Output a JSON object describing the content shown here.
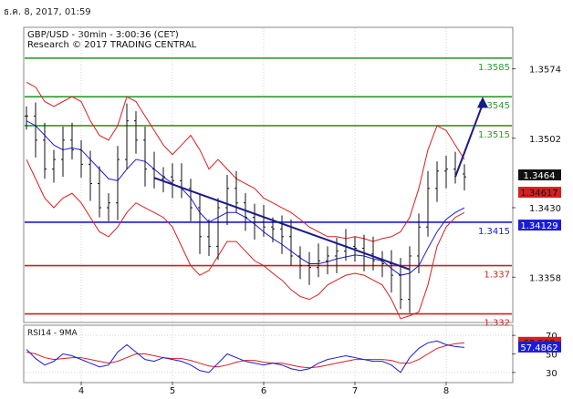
{
  "timestamp": "ธ.ค. 8, 2017, 01:59",
  "chart_data": [
    {
      "type": "candlestick",
      "title": "GBP/USD - 30min - 3:00:36 (CET)",
      "subtitle": "Research © 2017 TRADING CENTRAL",
      "x_tick_labels": [
        "4",
        "5",
        "6",
        "7",
        "8"
      ],
      "y_tick_labels": [
        "1.3574",
        "1.3502",
        "1.3430",
        "1.3358"
      ],
      "ylim": [
        1.3312,
        1.3616
      ],
      "grid": true,
      "levels": [
        {
          "value": 1.3585,
          "label": "1.3585",
          "color": "#2e9a2e"
        },
        {
          "value": 1.3545,
          "label": "1.3545",
          "color": "#2e9a2e"
        },
        {
          "value": 1.3515,
          "label": "1.3515",
          "color": "#2e9a2e"
        },
        {
          "value": 1.3415,
          "label": "1.3415",
          "color": "#1a1adc"
        },
        {
          "value": 1.337,
          "label": "1.337",
          "color": "#d81e1e"
        },
        {
          "value": 1.332,
          "label": "1.332",
          "color": "#d81e1e"
        }
      ],
      "price_tags": [
        {
          "value": 1.3464,
          "label": "1.3464",
          "bg": "#111111",
          "fg": "#ffffff"
        },
        {
          "value": 1.3446,
          "label": "1.34617",
          "bg": "#d81e1e",
          "fg": "#111111"
        },
        {
          "value": 1.3412,
          "label": "1.34129",
          "bg": "#1a1adc",
          "fg": "#ffffff"
        }
      ],
      "close_series": [
        1.3525,
        1.35,
        1.347,
        1.348,
        1.35,
        1.349,
        1.3475,
        1.3455,
        1.343,
        1.3435,
        1.348,
        1.352,
        1.35,
        1.347,
        1.346,
        1.3462,
        1.3458,
        1.345,
        1.343,
        1.34,
        1.339,
        1.343,
        1.345,
        1.3435,
        1.342,
        1.3415,
        1.341,
        1.3408,
        1.34,
        1.338,
        1.337,
        1.3368,
        1.3375,
        1.338,
        1.3385,
        1.339,
        1.3388,
        1.3382,
        1.3375,
        1.3372,
        1.336,
        1.3335,
        1.338,
        1.341,
        1.345,
        1.3468,
        1.347,
        1.3465,
        1.3462
      ],
      "upper_band": [
        1.356,
        1.3555,
        1.354,
        1.3535,
        1.354,
        1.3545,
        1.354,
        1.352,
        1.3505,
        1.35,
        1.3515,
        1.3545,
        1.354,
        1.3525,
        1.351,
        1.3495,
        1.3485,
        1.3495,
        1.3505,
        1.349,
        1.347,
        1.348,
        1.347,
        1.346,
        1.3455,
        1.345,
        1.344,
        1.3435,
        1.343,
        1.3425,
        1.3418,
        1.341,
        1.3405,
        1.34,
        1.34,
        1.3398,
        1.34,
        1.3398,
        1.3395,
        1.3398,
        1.34,
        1.3405,
        1.342,
        1.345,
        1.349,
        1.3515,
        1.351,
        1.3495,
        1.348
      ],
      "lower_band": [
        1.348,
        1.346,
        1.344,
        1.343,
        1.344,
        1.3445,
        1.3435,
        1.342,
        1.3405,
        1.34,
        1.341,
        1.3425,
        1.3435,
        1.343,
        1.3425,
        1.342,
        1.341,
        1.339,
        1.337,
        1.336,
        1.3365,
        1.338,
        1.3395,
        1.3395,
        1.3385,
        1.3375,
        1.337,
        1.3362,
        1.3355,
        1.3345,
        1.3338,
        1.3335,
        1.334,
        1.335,
        1.3355,
        1.336,
        1.3362,
        1.336,
        1.3355,
        1.335,
        1.3335,
        1.3315,
        1.3318,
        1.3322,
        1.335,
        1.339,
        1.341,
        1.342,
        1.3425
      ],
      "ma": [
        1.352,
        1.3515,
        1.3505,
        1.3495,
        1.349,
        1.3492,
        1.349,
        1.348,
        1.347,
        1.346,
        1.3458,
        1.347,
        1.348,
        1.3478,
        1.347,
        1.3462,
        1.3455,
        1.345,
        1.344,
        1.3425,
        1.3415,
        1.342,
        1.3425,
        1.3425,
        1.342,
        1.3413,
        1.3405,
        1.3398,
        1.3392,
        1.3385,
        1.3378,
        1.3372,
        1.3372,
        1.3374,
        1.3377,
        1.3379,
        1.3381,
        1.338,
        1.3377,
        1.3375,
        1.3367,
        1.336,
        1.3362,
        1.337,
        1.3388,
        1.3405,
        1.3418,
        1.3425,
        1.343
      ],
      "trendline": {
        "start_index": 14,
        "start_value": 1.3461,
        "end_index": 42,
        "end_value": 1.3366
      },
      "arrow": {
        "start_index": 47,
        "start_value": 1.3462,
        "end_index": 50,
        "end_value": 1.3545
      }
    },
    {
      "type": "line",
      "title": "RSI14 - 9MA",
      "y_tick_labels": [
        "70",
        "50",
        "30"
      ],
      "ylim": [
        20,
        80
      ],
      "grid": true,
      "value_tags": [
        {
          "value": 62.509,
          "label": "62.509",
          "bg": "#d81e1e",
          "fg": "#111111"
        },
        {
          "value": 57.4862,
          "label": "57.4862",
          "bg": "#1a1adc",
          "fg": "#ffffff"
        }
      ],
      "rsi": [
        55,
        45,
        38,
        42,
        50,
        48,
        44,
        40,
        36,
        38,
        52,
        60,
        52,
        44,
        42,
        46,
        44,
        42,
        38,
        32,
        30,
        40,
        50,
        46,
        42,
        40,
        38,
        40,
        38,
        34,
        32,
        34,
        40,
        44,
        46,
        48,
        46,
        44,
        42,
        42,
        38,
        30,
        46,
        56,
        62,
        64,
        60,
        58,
        57
      ],
      "rsi_ma": [
        52,
        50,
        46,
        44,
        45,
        46,
        46,
        44,
        42,
        40,
        42,
        46,
        50,
        50,
        48,
        46,
        45,
        45,
        43,
        40,
        37,
        36,
        38,
        41,
        43,
        43,
        41,
        40,
        40,
        38,
        36,
        35,
        36,
        38,
        40,
        42,
        44,
        44,
        44,
        44,
        43,
        40,
        40,
        44,
        50,
        56,
        59,
        61,
        62
      ]
    }
  ]
}
